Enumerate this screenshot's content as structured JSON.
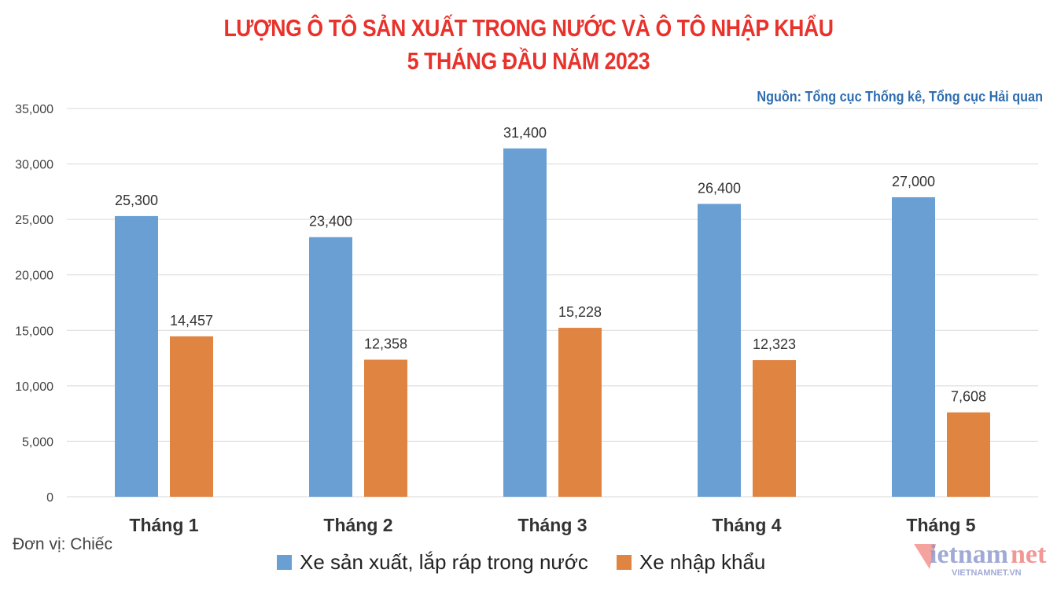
{
  "title_line1": "LƯỢNG Ô TÔ SẢN XUẤT TRONG NƯỚC VÀ Ô TÔ NHẬP KHẨU",
  "title_line2": "5 THÁNG ĐẦU NĂM 2023",
  "source": "Nguồn: Tổng cục Thống kê, Tổng cục Hải quan",
  "unit": "Đơn vị: Chiếc",
  "logo_text": "vietnamnet",
  "logo_subtext": "VIETNAMNET.VN",
  "chart_data": {
    "type": "bar",
    "categories": [
      "Tháng 1",
      "Tháng 2",
      "Tháng 3",
      "Tháng 4",
      "Tháng 5"
    ],
    "series": [
      {
        "name": "Xe sản xuất, lắp ráp trong nước",
        "color": "#6a9fd4",
        "values": [
          25300,
          23400,
          31400,
          26400,
          27000
        ],
        "labels": [
          "25,300",
          "23,400",
          "31,400",
          "26,400",
          "27,000"
        ]
      },
      {
        "name": "Xe nhập khẩu",
        "color": "#e08441",
        "values": [
          14457,
          12358,
          15228,
          12323,
          7608
        ],
        "labels": [
          "14,457",
          "12,358",
          "15,228",
          "12,323",
          "7,608"
        ]
      }
    ],
    "ylim": [
      0,
      35000
    ],
    "yticks": [
      "0",
      "5,000",
      "10,000",
      "15,000",
      "20,000",
      "25,000",
      "30,000",
      "35,000"
    ],
    "grid": true,
    "legend": "bottom"
  }
}
